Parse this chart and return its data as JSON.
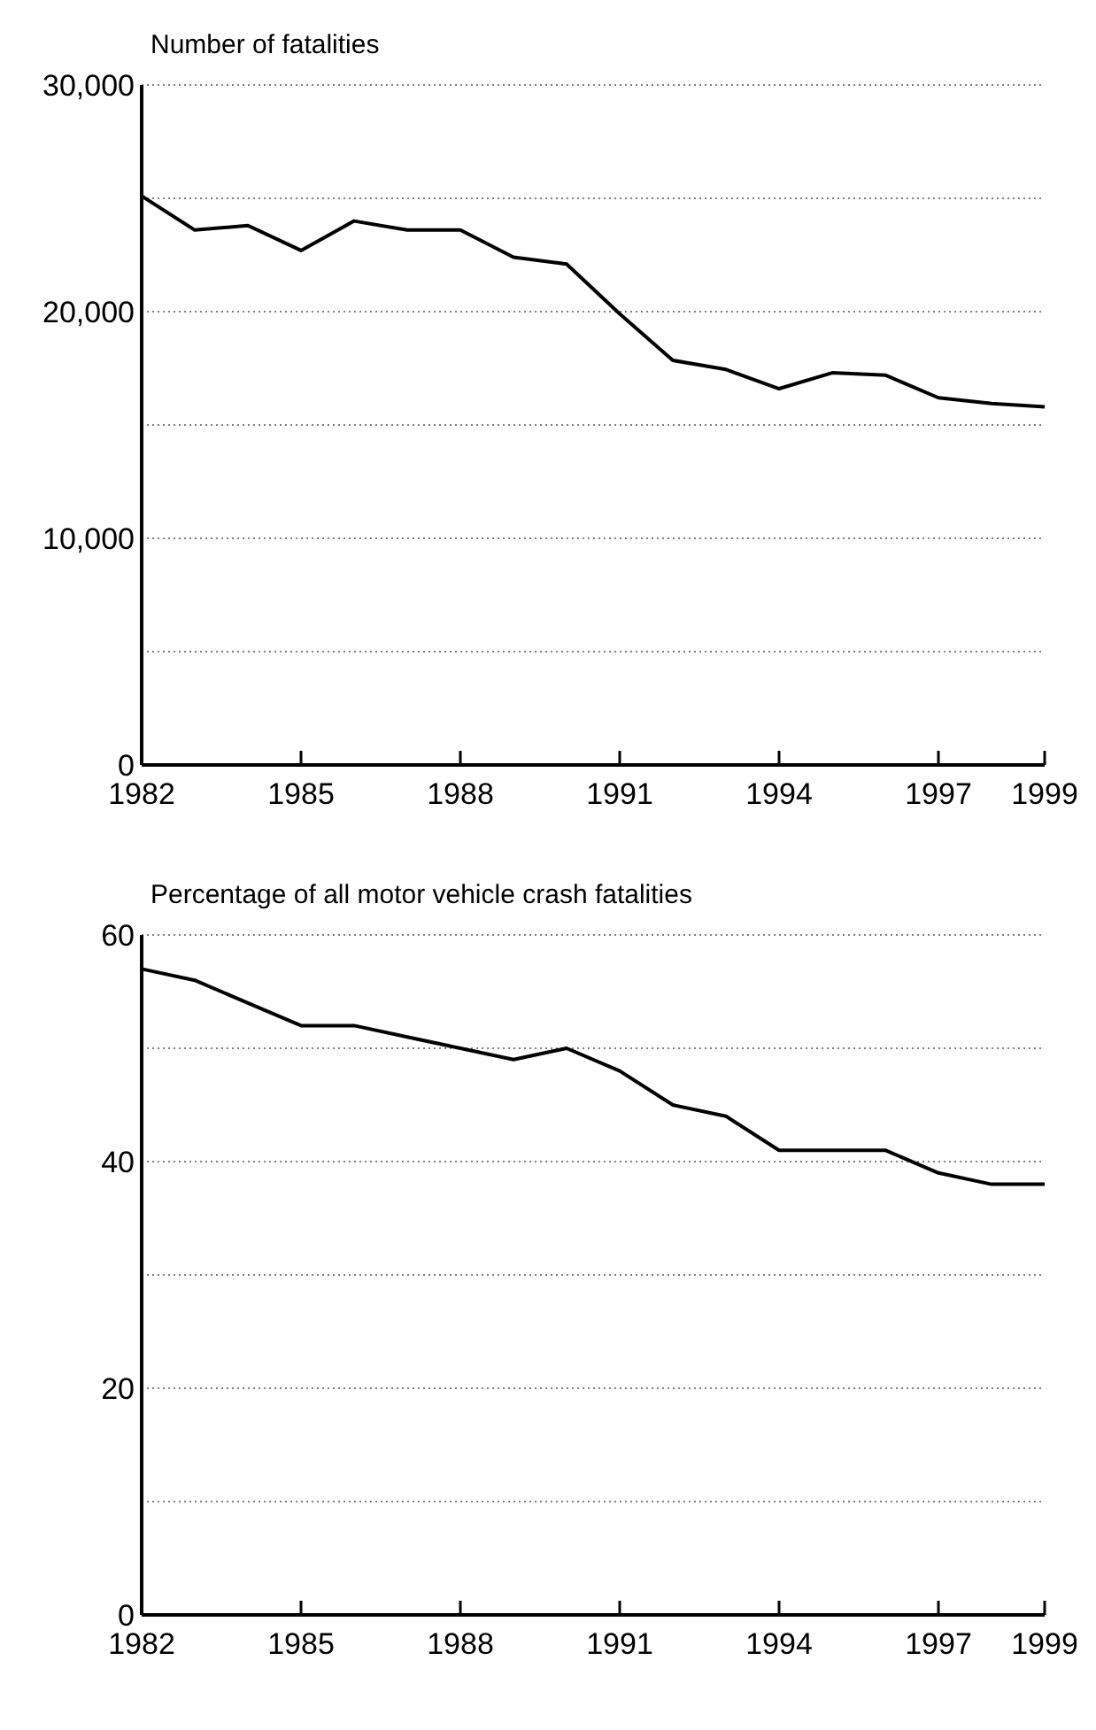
{
  "chart_data": [
    {
      "type": "line",
      "ylabel": "Number of fatalities",
      "x": [
        1982,
        1983,
        1984,
        1985,
        1986,
        1987,
        1988,
        1989,
        1990,
        1991,
        1992,
        1993,
        1994,
        1995,
        1996,
        1997,
        1998,
        1999
      ],
      "series": [
        {
          "color": "#000000",
          "values": [
            25100,
            23600,
            23800,
            22700,
            24000,
            23600,
            23600,
            22400,
            22100,
            19900,
            17850,
            17450,
            16600,
            17300,
            17200,
            16200,
            15950,
            15800
          ]
        }
      ],
      "xlim": [
        1982,
        1999
      ],
      "xticks": [
        1982,
        1985,
        1988,
        1991,
        1994,
        1997,
        1999
      ],
      "ylim": [
        0,
        30000
      ],
      "yticks": [
        {
          "value": 0,
          "label": "0"
        },
        {
          "value": 5000,
          "label": null
        },
        {
          "value": 10000,
          "label": "10,000"
        },
        {
          "value": 15000,
          "label": null
        },
        {
          "value": 20000,
          "label": "20,000"
        },
        {
          "value": 25000,
          "label": null
        },
        {
          "value": 30000,
          "label": "30,000"
        }
      ],
      "grid": "y",
      "marker": "none",
      "line_style": "solid"
    },
    {
      "type": "line",
      "ylabel": "Percentage of all motor vehicle crash fatalities",
      "x": [
        1982,
        1983,
        1984,
        1985,
        1986,
        1987,
        1988,
        1989,
        1990,
        1991,
        1992,
        1993,
        1994,
        1995,
        1996,
        1997,
        1998,
        1999
      ],
      "series": [
        {
          "color": "#000000",
          "values": [
            57,
            56,
            54,
            52,
            52,
            51,
            50,
            49,
            50,
            48,
            45,
            44,
            41,
            41,
            41,
            39,
            38,
            38
          ]
        }
      ],
      "xlim": [
        1982,
        1999
      ],
      "xticks": [
        1982,
        1985,
        1988,
        1991,
        1994,
        1997,
        1999
      ],
      "ylim": [
        0,
        60
      ],
      "yticks": [
        0,
        {
          "value": 10,
          "label": null
        },
        20,
        {
          "value": 30,
          "label": null
        },
        40,
        {
          "value": 50,
          "label": null
        },
        60
      ],
      "grid": "y",
      "marker": "none",
      "line_style": "solid"
    }
  ]
}
